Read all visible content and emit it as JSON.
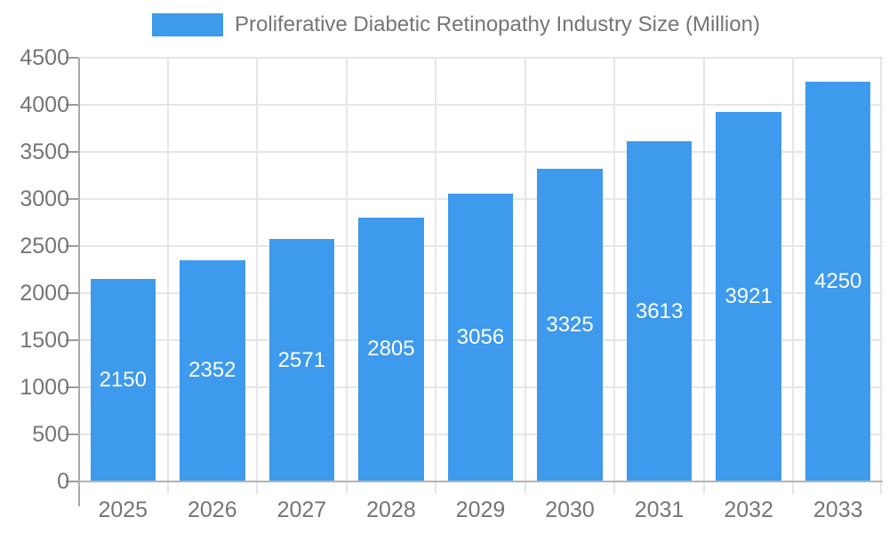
{
  "legend": {
    "label": "Proliferative Diabetic Retinopathy Industry Size (Million)"
  },
  "chart_data": {
    "type": "bar",
    "title": "Proliferative Diabetic Retinopathy Industry Size (Million)",
    "series_name": "Proliferative Diabetic Retinopathy Industry Size (Million)",
    "categories": [
      "2025",
      "2026",
      "2027",
      "2028",
      "2029",
      "2030",
      "2031",
      "2032",
      "2033"
    ],
    "values": [
      2150,
      2352,
      2571,
      2805,
      3056,
      3325,
      3613,
      3921,
      4250
    ],
    "value_labels": [
      "2150",
      "2352",
      "2571",
      "2805",
      "3056",
      "3325",
      "3613",
      "3921",
      "4250"
    ],
    "xlabel": "",
    "ylabel": "",
    "ylim": [
      0,
      4500
    ],
    "ytick_step": 500,
    "y_ticks": [
      0,
      500,
      1000,
      1500,
      2000,
      2500,
      3000,
      3500,
      4000,
      4500
    ],
    "grid": true,
    "legend_position": "top",
    "colors": {
      "bar": "#3e9aec",
      "gridline": "#e6e6e6",
      "axis_line": "#a9a9a9",
      "baseline": "#b3b3b3",
      "axis_text": "#757575",
      "value_text": "#ffffff",
      "background": "#ffffff"
    }
  }
}
